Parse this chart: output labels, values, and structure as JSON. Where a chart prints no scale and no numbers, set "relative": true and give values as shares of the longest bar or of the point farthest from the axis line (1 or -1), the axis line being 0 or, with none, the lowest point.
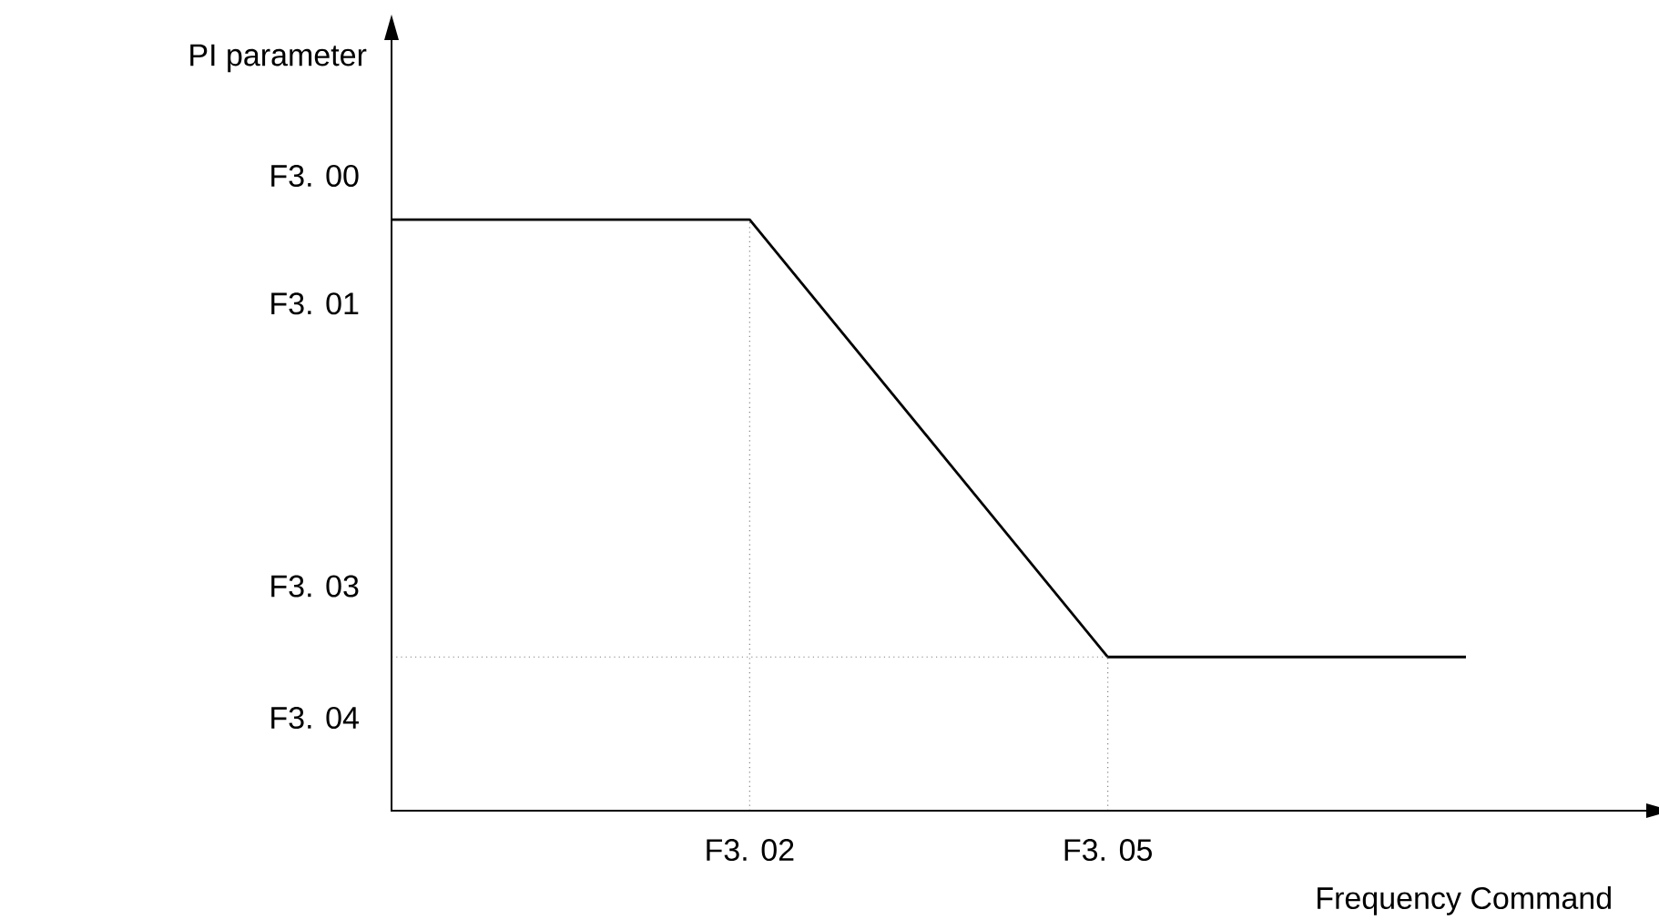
{
  "chart_data": {
    "type": "line",
    "relative": true,
    "xlabel": "Frequency Command",
    "ylabel": "PI parameter",
    "categories": [
      null,
      "F3. 02",
      "F3. 05",
      null
    ],
    "series": [
      {
        "color": "#000000",
        "values": [
          1,
          1,
          0.26,
          0.26
        ]
      }
    ],
    "ref_lines": [
      {
        "axis": "x",
        "value": "F3. 02",
        "line_style": "dotted"
      },
      {
        "axis": "x",
        "value": "F3. 05",
        "line_style": "dotted"
      },
      {
        "axis": "y",
        "value": 0.26,
        "line_style": "dotted"
      }
    ],
    "annotations": [
      "F3. 00",
      "F3. 01",
      "F3. 03",
      "F3. 04"
    ]
  }
}
